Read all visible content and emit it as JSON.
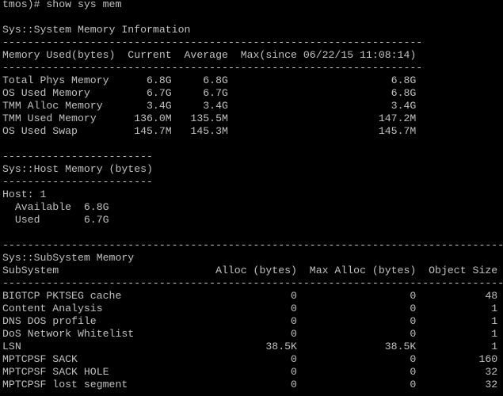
{
  "terminal": {
    "text_color": "#c0c0c0",
    "background": "#000000",
    "prompt_line": "tmos)# show sys mem",
    "system_memory": {
      "title": "Sys::System Memory Information",
      "headers": [
        "Memory Used(bytes)",
        "Current",
        "Average",
        "Max(since 06/22/15 11:08:14)"
      ],
      "rows": [
        [
          "Total Phys Memory",
          "6.8G",
          "6.8G",
          "6.8G"
        ],
        [
          "OS Used Memory",
          "6.7G",
          "6.7G",
          "6.8G"
        ],
        [
          "TMM Alloc Memory",
          "3.4G",
          "3.4G",
          "3.4G"
        ],
        [
          "TMM Used Memory",
          "136.0M",
          "135.5M",
          "147.2M"
        ],
        [
          "OS Used Swap",
          "145.7M",
          "145.3M",
          "145.7M"
        ]
      ]
    },
    "host_memory": {
      "title": "Sys::Host Memory (bytes)",
      "host_label": "Host: 1",
      "rows": [
        [
          "Available",
          "6.8G"
        ],
        [
          "Used",
          "6.7G"
        ]
      ]
    },
    "subsystem_memory": {
      "title": "Sys::SubSystem Memory",
      "headers": [
        "SubSystem",
        "Alloc (bytes)",
        "Max Alloc (bytes)",
        "Object Size"
      ],
      "rows": [
        [
          "BIGTCP PKTSEG cache",
          "0",
          "0",
          "48"
        ],
        [
          "Content Analysis",
          "0",
          "0",
          "1"
        ],
        [
          "DNS DOS profile",
          "0",
          "0",
          "1"
        ],
        [
          "DoS Network Whitelist",
          "0",
          "0",
          "1"
        ],
        [
          "LSN",
          "38.5K",
          "38.5K",
          "1"
        ],
        [
          "MPTCPSF SACK",
          "0",
          "0",
          "160"
        ],
        [
          "MPTCPSF SACK HOLE",
          "0",
          "0",
          "32"
        ],
        [
          "MPTCPSF lost segment",
          "0",
          "0",
          "32"
        ]
      ]
    }
  }
}
